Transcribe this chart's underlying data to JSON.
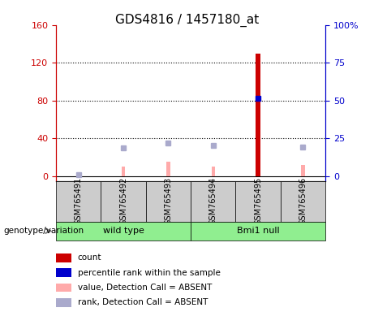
{
  "title": "GDS4816 / 1457180_at",
  "samples": [
    "GSM765491",
    "GSM765492",
    "GSM765493",
    "GSM765494",
    "GSM765495",
    "GSM765496"
  ],
  "groups": [
    "wild type",
    "wild type",
    "wild type",
    "Bmi1 null",
    "Bmi1 null",
    "Bmi1 null"
  ],
  "group_labels": [
    "wild type",
    "Bmi1 null"
  ],
  "group_colors": [
    "#90EE90",
    "#90EE90"
  ],
  "count_values": [
    null,
    null,
    null,
    null,
    130,
    null
  ],
  "rank_values": [
    null,
    null,
    null,
    null,
    82,
    null
  ],
  "absent_value_values": [
    null,
    10,
    15,
    10,
    null,
    12
  ],
  "absent_rank_values": [
    null,
    30,
    35,
    33,
    null,
    31
  ],
  "gsm1_absent_rank": 2,
  "ylim_left": [
    -5,
    160
  ],
  "ylim_right": [
    -5,
    160
  ],
  "yticks_left": [
    0,
    40,
    80,
    120,
    160
  ],
  "yticks_right": [
    0,
    25,
    50,
    75,
    100
  ],
  "ytick_labels_right": [
    "0",
    "25",
    "50",
    "75",
    "100%"
  ],
  "left_axis_color": "#cc0000",
  "right_axis_color": "#0000cc",
  "count_color": "#cc0000",
  "rank_color": "#0000cc",
  "absent_value_color": "#ffaaaa",
  "absent_rank_color": "#aaaacc",
  "bar_color": "#cc0000",
  "genotype_label": "genotype/variation",
  "legend_items": [
    {
      "label": "count",
      "color": "#cc0000",
      "marker": "s"
    },
    {
      "label": "percentile rank within the sample",
      "color": "#0000cc",
      "marker": "s"
    },
    {
      "label": "value, Detection Call = ABSENT",
      "color": "#ffaaaa",
      "marker": "s"
    },
    {
      "label": "rank, Detection Call = ABSENT",
      "color": "#aaaacc",
      "marker": "s"
    }
  ],
  "sample_box_color": "#cccccc",
  "grid_color": "black",
  "grid_linestyle": "dotted"
}
